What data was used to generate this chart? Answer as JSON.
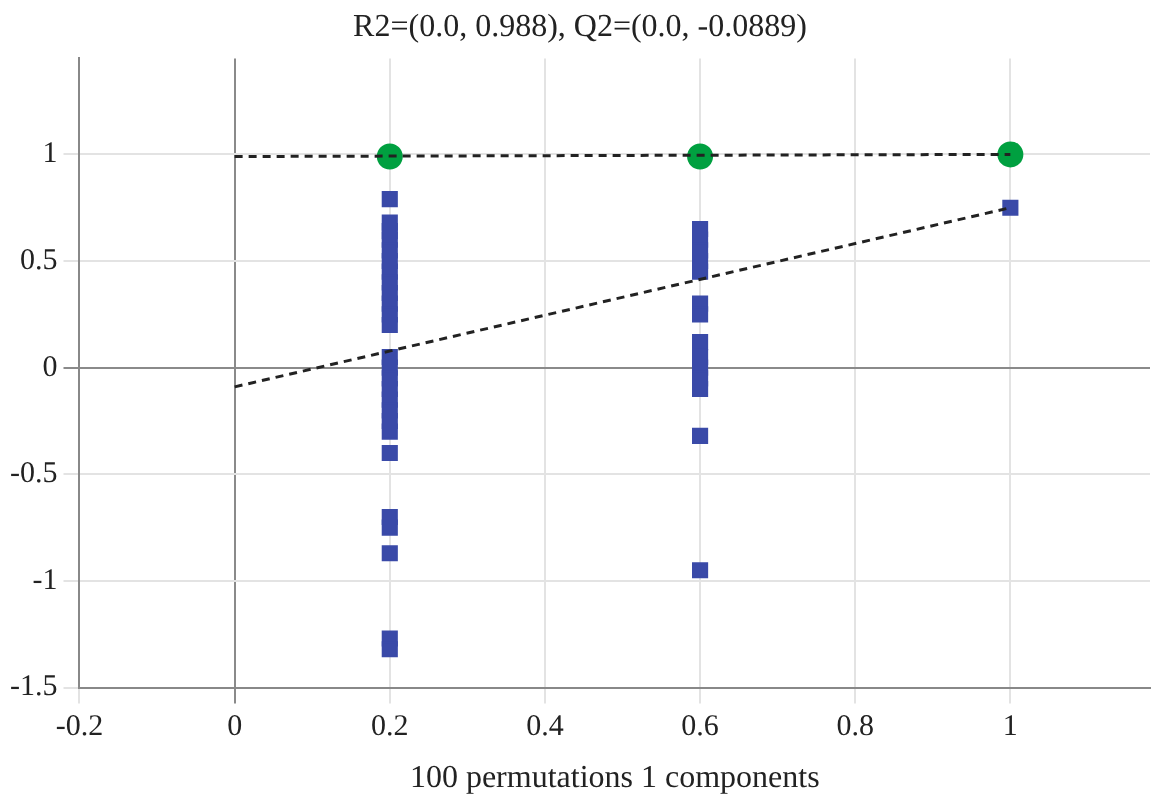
{
  "chart_data": {
    "type": "scatter",
    "title": "R2=(0.0, 0.988), Q2=(0.0, -0.0889)",
    "xlabel": "100 permutations 1 components",
    "xlim": [
      -0.2,
      1.18
    ],
    "ylim": [
      -1.5,
      1.45
    ],
    "xticks": [
      -0.2,
      0,
      0.2,
      0.4,
      0.6,
      0.8,
      1
    ],
    "yticks": [
      -1.5,
      -1,
      -0.5,
      0,
      0.5,
      1
    ],
    "grid": true,
    "legend": false,
    "series": [
      {
        "type": "line",
        "color": "#222222",
        "line_style": "dashed",
        "marker": "none",
        "x": [
          0,
          1
        ],
        "values": [
          0.99,
          1.0
        ]
      },
      {
        "type": "line",
        "color": "#222222",
        "line_style": "dashed",
        "marker": "none",
        "x": [
          0,
          1
        ],
        "values": [
          -0.09,
          0.75
        ]
      },
      {
        "color": "#00a040",
        "marker": "circle",
        "x": [
          0.2,
          0.6,
          1
        ],
        "values": [
          0.99,
          0.99,
          1.0
        ]
      },
      {
        "color": "#3a4aa8",
        "marker": "square",
        "x": [
          0.2,
          0.2,
          0.2,
          0.2,
          0.2,
          0.2,
          0.2,
          0.2,
          0.2,
          0.2,
          0.2,
          0.2,
          0.2,
          0.2,
          0.2,
          0.2,
          0.2,
          0.2,
          0.2,
          0.2,
          0.2,
          0.2,
          0.2,
          0.2,
          0.2,
          0.2,
          0.6,
          0.6,
          0.6,
          0.6,
          0.6,
          0.6,
          0.6,
          0.6,
          0.6,
          0.6,
          0.6,
          0.6,
          0.6,
          0.6,
          1
        ],
        "values": [
          0.79,
          0.68,
          0.64,
          0.6,
          0.55,
          0.5,
          0.45,
          0.4,
          0.35,
          0.3,
          0.25,
          0.2,
          0.05,
          0,
          -0.05,
          -0.1,
          -0.15,
          -0.2,
          -0.25,
          -0.3,
          -0.4,
          -0.7,
          -0.75,
          -0.87,
          -1.27,
          -1.32,
          0.65,
          0.6,
          0.55,
          0.5,
          0.45,
          0.3,
          0.25,
          0.12,
          0.05,
          0,
          -0.05,
          -0.1,
          -0.32,
          -0.95,
          0.75
        ]
      }
    ]
  }
}
